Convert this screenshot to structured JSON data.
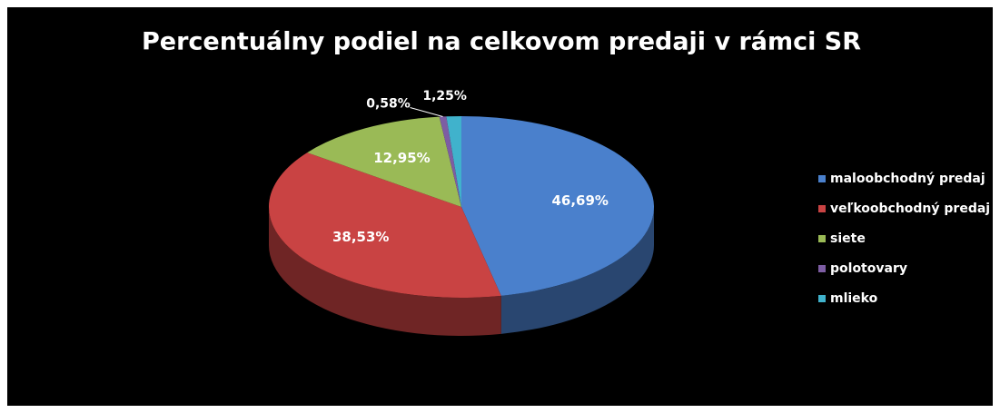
{
  "chart_data": {
    "type": "pie",
    "title": "Percentuálny podiel na celkovom predaji v rámci SR",
    "categories": [
      "maloobchodný predaj",
      "veľkoobchodný predaj",
      "siete",
      "polotovary",
      "mlieko"
    ],
    "values": [
      46.69,
      38.53,
      12.95,
      0.58,
      1.25
    ],
    "value_labels": [
      "46,69%",
      "38,53%",
      "12,95%",
      "0,58%",
      "1,25%"
    ],
    "colors": [
      "#4a80cc",
      "#c94343",
      "#9aba56",
      "#7d5da3",
      "#40b2cc"
    ],
    "legend": "right"
  }
}
